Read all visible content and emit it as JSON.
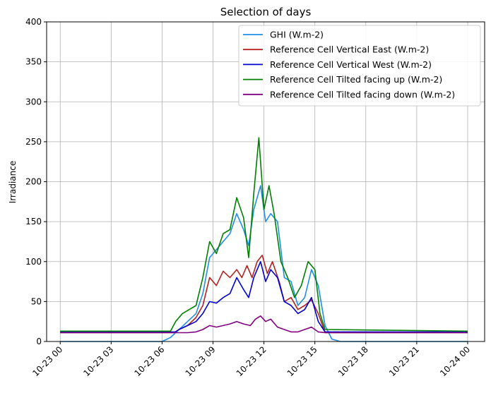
{
  "chart_data": {
    "type": "line",
    "title": "Selection of days",
    "xlabel": "",
    "ylabel": "Irradiance",
    "ylim": [
      0,
      400
    ],
    "yticks": [
      0,
      50,
      100,
      150,
      200,
      250,
      300,
      350,
      400
    ],
    "xlim": [
      -0.8,
      25.0
    ],
    "x_unit": "hours since 10-23 00",
    "xticks": [
      {
        "value": 0,
        "label": "10-23 00"
      },
      {
        "value": 3,
        "label": "10-23 03"
      },
      {
        "value": 6,
        "label": "10-23 06"
      },
      {
        "value": 9,
        "label": "10-23 09"
      },
      {
        "value": 12,
        "label": "10-23 12"
      },
      {
        "value": 15,
        "label": "10-23 15"
      },
      {
        "value": 18,
        "label": "10-23 18"
      },
      {
        "value": 21,
        "label": "10-23 21"
      },
      {
        "value": 24,
        "label": "10-24 00"
      }
    ],
    "grid": true,
    "legend_position": "top-right",
    "series": [
      {
        "name": "GHI (W.m-2)",
        "color": "#1f8ee6",
        "points": [
          [
            0,
            0
          ],
          [
            6,
            0
          ],
          [
            6.5,
            5
          ],
          [
            7,
            15
          ],
          [
            7.5,
            25
          ],
          [
            8,
            35
          ],
          [
            8.4,
            60
          ],
          [
            8.8,
            105
          ],
          [
            9.2,
            115
          ],
          [
            9.6,
            125
          ],
          [
            10,
            135
          ],
          [
            10.4,
            160
          ],
          [
            10.8,
            140
          ],
          [
            11.1,
            120
          ],
          [
            11.4,
            165
          ],
          [
            11.8,
            195
          ],
          [
            12.1,
            150
          ],
          [
            12.4,
            160
          ],
          [
            12.8,
            150
          ],
          [
            13.2,
            80
          ],
          [
            13.6,
            75
          ],
          [
            14,
            45
          ],
          [
            14.4,
            55
          ],
          [
            14.8,
            90
          ],
          [
            15.2,
            70
          ],
          [
            15.6,
            20
          ],
          [
            16,
            3
          ],
          [
            16.5,
            0
          ],
          [
            24,
            0
          ]
        ]
      },
      {
        "name": "Reference Cell Vertical East (W.m-2)",
        "color": "#b22222",
        "points": [
          [
            0,
            11
          ],
          [
            6.7,
            11
          ],
          [
            7,
            15
          ],
          [
            7.5,
            20
          ],
          [
            8,
            30
          ],
          [
            8.4,
            45
          ],
          [
            8.8,
            80
          ],
          [
            9.2,
            70
          ],
          [
            9.6,
            88
          ],
          [
            10,
            80
          ],
          [
            10.4,
            90
          ],
          [
            10.7,
            80
          ],
          [
            11,
            95
          ],
          [
            11.3,
            80
          ],
          [
            11.6,
            100
          ],
          [
            11.9,
            108
          ],
          [
            12.2,
            85
          ],
          [
            12.5,
            100
          ],
          [
            12.9,
            75
          ],
          [
            13.2,
            50
          ],
          [
            13.6,
            55
          ],
          [
            14,
            40
          ],
          [
            14.4,
            45
          ],
          [
            14.8,
            52
          ],
          [
            15.2,
            35
          ],
          [
            15.6,
            11
          ],
          [
            24,
            11
          ]
        ]
      },
      {
        "name": "Reference Cell Vertical West (W.m-2)",
        "color": "#0000cd",
        "points": [
          [
            0,
            12
          ],
          [
            6.8,
            12
          ],
          [
            7,
            15
          ],
          [
            7.5,
            20
          ],
          [
            8,
            25
          ],
          [
            8.4,
            35
          ],
          [
            8.8,
            50
          ],
          [
            9.2,
            48
          ],
          [
            9.6,
            55
          ],
          [
            10,
            60
          ],
          [
            10.4,
            80
          ],
          [
            10.8,
            65
          ],
          [
            11.1,
            55
          ],
          [
            11.4,
            80
          ],
          [
            11.8,
            100
          ],
          [
            12.1,
            75
          ],
          [
            12.4,
            90
          ],
          [
            12.8,
            80
          ],
          [
            13.2,
            50
          ],
          [
            13.6,
            45
          ],
          [
            14,
            35
          ],
          [
            14.4,
            40
          ],
          [
            14.8,
            55
          ],
          [
            15.2,
            25
          ],
          [
            15.6,
            12
          ],
          [
            24,
            12
          ]
        ]
      },
      {
        "name": "Reference Cell Tilted facing up (W.m-2)",
        "color": "#008000",
        "points": [
          [
            0,
            13
          ],
          [
            6.5,
            13
          ],
          [
            6.8,
            25
          ],
          [
            7.2,
            35
          ],
          [
            7.6,
            40
          ],
          [
            8,
            45
          ],
          [
            8.4,
            80
          ],
          [
            8.8,
            125
          ],
          [
            9.2,
            110
          ],
          [
            9.6,
            135
          ],
          [
            10,
            140
          ],
          [
            10.4,
            180
          ],
          [
            10.8,
            155
          ],
          [
            11.1,
            105
          ],
          [
            11.4,
            185
          ],
          [
            11.7,
            255
          ],
          [
            12,
            165
          ],
          [
            12.3,
            195
          ],
          [
            12.6,
            160
          ],
          [
            13,
            100
          ],
          [
            13.4,
            80
          ],
          [
            13.8,
            55
          ],
          [
            14.2,
            70
          ],
          [
            14.6,
            100
          ],
          [
            15,
            90
          ],
          [
            15.3,
            35
          ],
          [
            15.6,
            15
          ],
          [
            24,
            13
          ]
        ]
      },
      {
        "name": "Reference Cell Tilted facing down (W.m-2)",
        "color": "#800080",
        "points": [
          [
            0,
            11
          ],
          [
            7.5,
            11
          ],
          [
            8,
            12
          ],
          [
            8.4,
            15
          ],
          [
            8.8,
            20
          ],
          [
            9.2,
            18
          ],
          [
            9.6,
            20
          ],
          [
            10,
            22
          ],
          [
            10.4,
            25
          ],
          [
            10.8,
            22
          ],
          [
            11.2,
            20
          ],
          [
            11.5,
            28
          ],
          [
            11.8,
            32
          ],
          [
            12.1,
            25
          ],
          [
            12.4,
            28
          ],
          [
            12.8,
            18
          ],
          [
            13.2,
            15
          ],
          [
            13.6,
            12
          ],
          [
            14,
            12
          ],
          [
            14.4,
            15
          ],
          [
            14.8,
            18
          ],
          [
            15.2,
            12
          ],
          [
            15.6,
            11
          ],
          [
            24,
            11
          ]
        ]
      }
    ]
  }
}
